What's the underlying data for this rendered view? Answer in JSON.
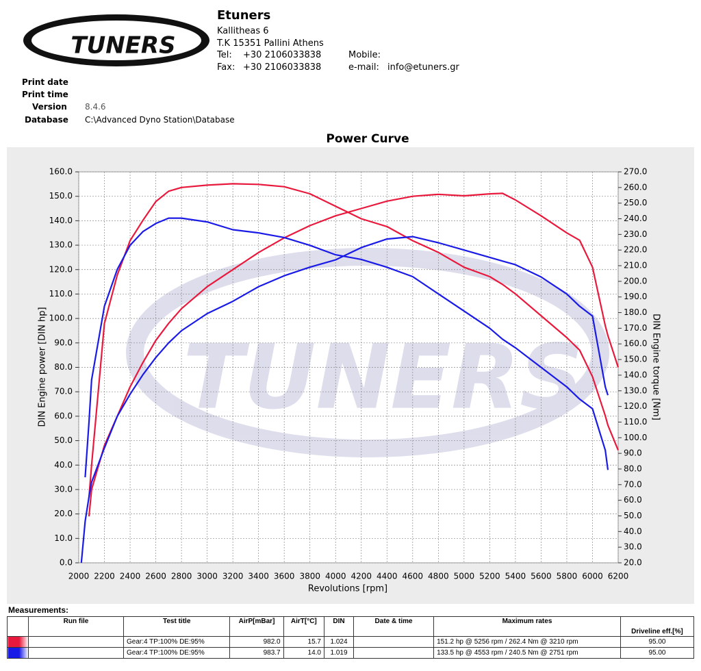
{
  "header": {
    "company": "Etuners",
    "address1": "Kallitheas 6",
    "address2": "T.K 15351 Pallini Athens",
    "tel_label": "Tel:",
    "tel": "+30 2106033838",
    "fax_label": "Fax:",
    "fax": "+30 2106033838",
    "mobile_label": "Mobile:",
    "email_label": "e-mail:",
    "email": "info@etuners.gr",
    "logo": "TUNERS"
  },
  "info": {
    "print_date_label": "Print date",
    "print_time_label": "Print time",
    "version_label": "Version",
    "version": "8.4.6",
    "database_label": "Database",
    "database": "C:\\Advanced Dyno Station\\Database"
  },
  "chart_data": {
    "type": "line",
    "title": "Power Curve",
    "x_label": "Revolutions [rpm]",
    "y_label": "DIN Engine power [DIN hp]",
    "y2_label": "DIN Engine torque [Nm]",
    "grid": true,
    "x": [
      2020,
      2050,
      2080,
      2100,
      2200,
      2300,
      2400,
      2500,
      2600,
      2700,
      2800,
      3000,
      3200,
      3400,
      3600,
      3800,
      4000,
      4200,
      4400,
      4600,
      4800,
      5000,
      5200,
      5300,
      5400,
      5600,
      5800,
      5900,
      6000,
      6100,
      6120,
      6200
    ],
    "xlim": [
      2000,
      6200
    ],
    "xticks": [
      2000,
      2200,
      2400,
      2600,
      2800,
      3000,
      3200,
      3400,
      3600,
      3800,
      4000,
      4200,
      4400,
      4600,
      4800,
      5000,
      5200,
      5400,
      5600,
      5800,
      6000,
      6200
    ],
    "ylim": [
      0,
      160
    ],
    "yticks": [
      {
        "value": 0,
        "label": "0.0"
      },
      {
        "value": 10,
        "label": "10.0"
      },
      {
        "value": 20,
        "label": "20.0"
      },
      {
        "value": 30,
        "label": "30.0"
      },
      {
        "value": 40,
        "label": "40.0"
      },
      {
        "value": 50,
        "label": "50.0"
      },
      {
        "value": 60,
        "label": "60.0"
      },
      {
        "value": 70,
        "label": "70.0"
      },
      {
        "value": 80,
        "label": "80.0"
      },
      {
        "value": 90,
        "label": "90.0"
      },
      {
        "value": 100,
        "label": "100.0"
      },
      {
        "value": 110,
        "label": "110.0"
      },
      {
        "value": 120,
        "label": "120.0"
      },
      {
        "value": 130,
        "label": "130.0"
      },
      {
        "value": 140,
        "label": "140.0"
      },
      {
        "value": 150,
        "label": "150.0"
      },
      {
        "value": 160,
        "label": "160.0"
      }
    ],
    "y2lim": [
      20,
      270
    ],
    "y2ticks": [
      {
        "value": 20,
        "label": "20.0"
      },
      {
        "value": 30,
        "label": "30.0"
      },
      {
        "value": 40,
        "label": "40.0"
      },
      {
        "value": 50,
        "label": "50.0"
      },
      {
        "value": 60,
        "label": "60.0"
      },
      {
        "value": 70,
        "label": "70.0"
      },
      {
        "value": 80,
        "label": "80.0"
      },
      {
        "value": 90,
        "label": "90.0"
      },
      {
        "value": 100,
        "label": "100.0"
      },
      {
        "value": 110,
        "label": "110.0"
      },
      {
        "value": 120,
        "label": "120.0"
      },
      {
        "value": 130,
        "label": "130.0"
      },
      {
        "value": 140,
        "label": "140.0"
      },
      {
        "value": 150,
        "label": "150.0"
      },
      {
        "value": 160,
        "label": "160.0"
      },
      {
        "value": 170,
        "label": "170.0"
      },
      {
        "value": 180,
        "label": "180.0"
      },
      {
        "value": 190,
        "label": "190.0"
      },
      {
        "value": 200,
        "label": "200.0"
      },
      {
        "value": 210,
        "label": "210.0"
      },
      {
        "value": 220,
        "label": "220.0"
      },
      {
        "value": 230,
        "label": "230.0"
      },
      {
        "value": 240,
        "label": "240.0"
      },
      {
        "value": 250,
        "label": "250.0"
      },
      {
        "value": 260,
        "label": "260.0"
      },
      {
        "value": 270,
        "label": "270.0"
      }
    ],
    "series": [
      {
        "color": "#e8193c",
        "axis": "y2",
        "values": [
          null,
          null,
          62,
          82.5,
          173,
          204,
          226,
          239,
          251,
          257.6,
          260,
          261.5,
          262.4,
          262,
          260.5,
          256,
          248,
          240,
          235,
          226,
          218.5,
          209,
          203,
          198,
          192,
          178,
          164,
          156,
          139,
          114,
          108,
          92
        ]
      },
      {
        "color": "#e8193c",
        "values": [
          null,
          null,
          19,
          30,
          48,
          60,
          72,
          82,
          91,
          98,
          104,
          113,
          120,
          127,
          133,
          138,
          142,
          145,
          148,
          150,
          150.8,
          150.2,
          151,
          151.2,
          148.5,
          142,
          135,
          132,
          121,
          97,
          93,
          80
        ]
      },
      {
        "color": "#1a1ae6",
        "axis": "y2",
        "values": [
          null,
          74.7,
          110,
          137,
          184,
          207.6,
          223,
          231.8,
          237,
          240.4,
          240.4,
          238,
          233,
          231,
          228,
          223,
          217,
          214,
          209,
          203,
          192,
          181,
          170,
          163,
          157.5,
          145,
          132.5,
          124.7,
          118.5,
          92,
          79.4,
          null
        ]
      },
      {
        "color": "#1a1ae6",
        "values": [
          0,
          17,
          27,
          33,
          47,
          60,
          69,
          77,
          84,
          90,
          95,
          102,
          107,
          113,
          117.5,
          121,
          124,
          129,
          132.5,
          133.5,
          131,
          128,
          125,
          123.5,
          122,
          117,
          110,
          105,
          101,
          72,
          68.6,
          null
        ]
      }
    ]
  },
  "table": {
    "title": "Measurements:",
    "headers": [
      "Run file",
      "Test title",
      "AirP[mBar]",
      "AirT[°C]",
      "DIN",
      "Date & time",
      "Maximum rates",
      "Driveline eff.[%]"
    ],
    "rows": [
      {
        "color": "#e8193c",
        "test_title": "Gear:4 TP:100% DE:95%",
        "airp": "982.0",
        "airt": "15.7",
        "din": "1.024",
        "max_rates": "151.2 hp @ 5256 rpm / 262.4 Nm @ 3210 rpm",
        "eff": "95.00"
      },
      {
        "color": "#1a1ae6",
        "test_title": "Gear:4 TP:100% DE:95%",
        "airp": "983.7",
        "airt": "14.0",
        "din": "1.019",
        "max_rates": "133.5 hp @ 4553 rpm / 240.5 Nm @ 2751 rpm",
        "eff": "95.00"
      }
    ]
  }
}
